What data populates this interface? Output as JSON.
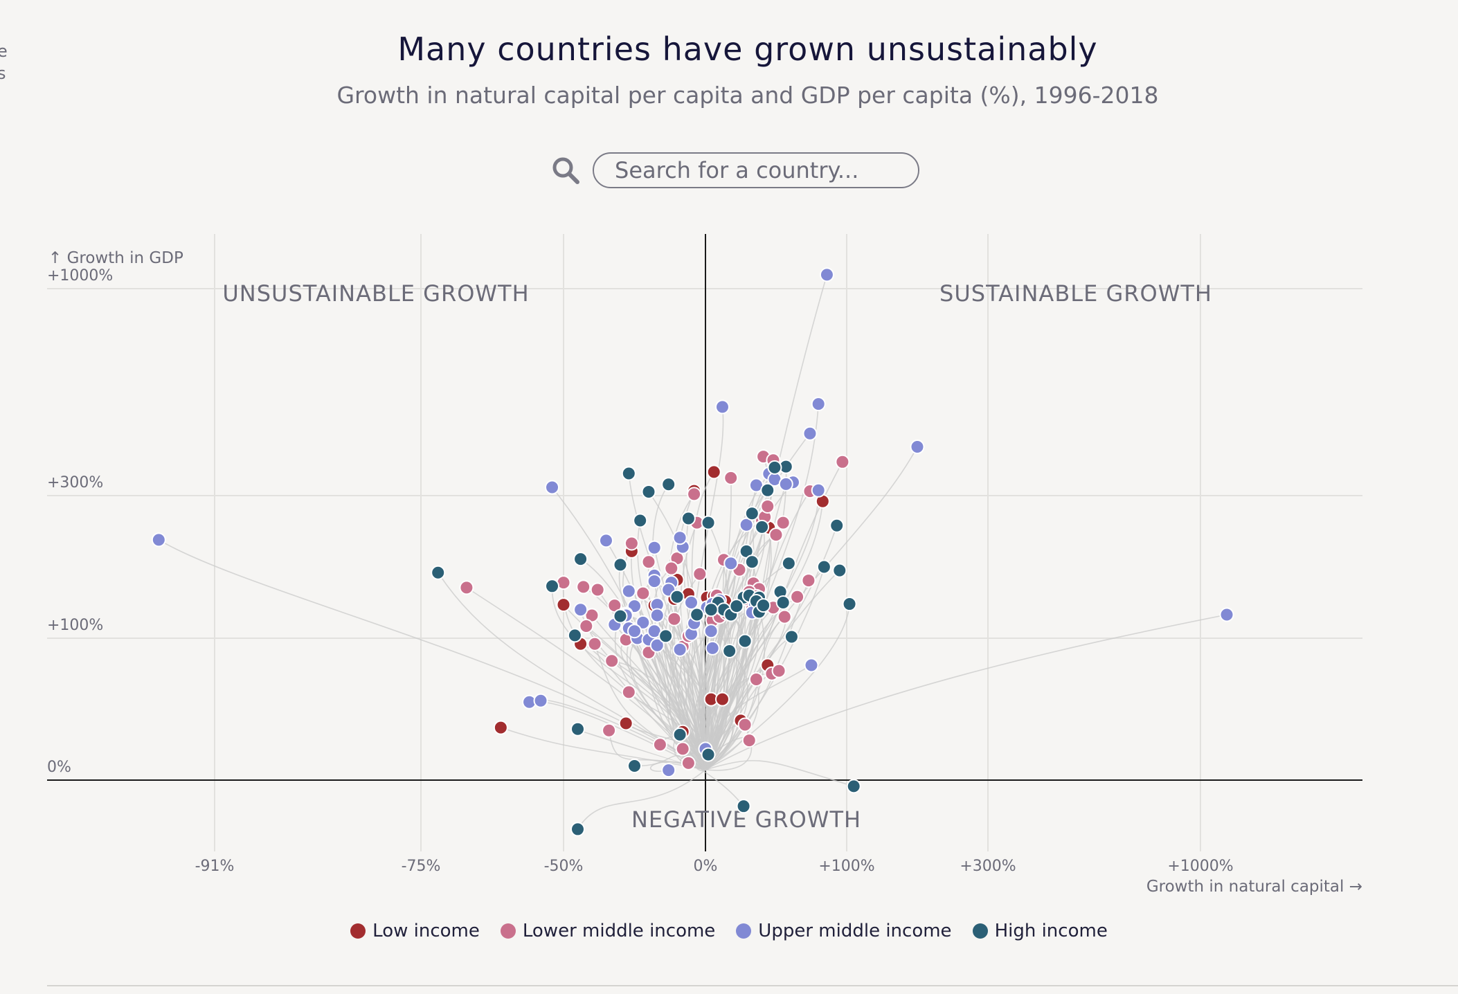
{
  "page": {
    "edge_text": [
      "e",
      "s"
    ],
    "title": "Many countries have grown unsustainably",
    "subtitle": "Growth in natural capital per capita and GDP per capita (%), 1996-2018"
  },
  "search": {
    "placeholder": "Search for a country...",
    "icon": "search-icon"
  },
  "chart_data": {
    "type": "scatter",
    "title": "Many countries have grown unsustainably",
    "subtitle": "Growth in natural capital per capita and GDP per capita (%), 1996-2018",
    "xlabel": "Growth in natural capital →",
    "ylabel": "↑ Growth in GDP",
    "x_ticks": [
      {
        "value": -91,
        "label": "-91%"
      },
      {
        "value": -75,
        "label": "-75%"
      },
      {
        "value": -50,
        "label": "-50%"
      },
      {
        "value": 0,
        "label": "0%"
      },
      {
        "value": 100,
        "label": "+100%"
      },
      {
        "value": 300,
        "label": "+300%"
      },
      {
        "value": 1000,
        "label": "+1000%"
      }
    ],
    "y_ticks": [
      {
        "value": 0,
        "label": "0%"
      },
      {
        "value": 100,
        "label": "+100%"
      },
      {
        "value": 300,
        "label": "+300%"
      },
      {
        "value": 1000,
        "label": "+1000%"
      }
    ],
    "quadrant_labels": {
      "top_left": "UNSUSTAINABLE GROWTH",
      "top_right": "SUSTAINABLE GROWTH",
      "bottom": "NEGATIVE GROWTH"
    },
    "grid": true,
    "legend_position": "bottom",
    "colors": {
      "Low income": "#a22d2f",
      "Lower middle income": "#c9708c",
      "Upper middle income": "#8189d4",
      "High income": "#2b5f75",
      "trail": "#c9c9c9",
      "grid": "#e2e1de",
      "axis": "#1a1a1a"
    },
    "series": [
      {
        "name": "Low income",
        "points": [
          [
            6,
            380
          ],
          [
            -4,
            316
          ],
          [
            -26,
            222
          ],
          [
            -18,
            146
          ],
          [
            -50,
            147
          ],
          [
            -6,
            162
          ],
          [
            1,
            157
          ],
          [
            6,
            159
          ],
          [
            14,
            152
          ],
          [
            -11,
            155
          ],
          [
            -10,
            182
          ],
          [
            10,
            145
          ],
          [
            45,
            255
          ],
          [
            -44,
            96
          ],
          [
            -61,
            37
          ],
          [
            -28,
            40
          ],
          [
            -8,
            34
          ],
          [
            4,
            57
          ],
          [
            12,
            57
          ],
          [
            25,
            42
          ],
          [
            44,
            81
          ],
          [
            83,
            292
          ]
        ]
      },
      {
        "name": "Lower middle income",
        "points": [
          [
            -4,
            305
          ],
          [
            -3,
            262
          ],
          [
            18,
            360
          ],
          [
            41,
            432
          ],
          [
            48,
            420
          ],
          [
            97,
            414
          ],
          [
            40,
            265
          ],
          [
            42,
            270
          ],
          [
            44,
            285
          ],
          [
            55,
            262
          ],
          [
            50,
            245
          ],
          [
            74,
            315
          ],
          [
            -26,
            233
          ],
          [
            -20,
            207
          ],
          [
            -10,
            212
          ],
          [
            -12,
            198
          ],
          [
            -2,
            190
          ],
          [
            13,
            210
          ],
          [
            -50,
            178
          ],
          [
            -67,
            171
          ],
          [
            -43,
            172
          ],
          [
            -38,
            168
          ],
          [
            -32,
            146
          ],
          [
            -22,
            163
          ],
          [
            -40,
            132
          ],
          [
            -42,
            117
          ],
          [
            -39,
            96
          ],
          [
            -33,
            84
          ],
          [
            -25,
            112
          ],
          [
            -28,
            99
          ],
          [
            -8,
            94
          ],
          [
            -11,
            127
          ],
          [
            -6,
            103
          ],
          [
            -20,
            90
          ],
          [
            5,
            125
          ],
          [
            10,
            130
          ],
          [
            15,
            135
          ],
          [
            6,
            145
          ],
          [
            8,
            160
          ],
          [
            24,
            196
          ],
          [
            34,
            177
          ],
          [
            38,
            169
          ],
          [
            33,
            141
          ],
          [
            28,
            155
          ],
          [
            31,
            165
          ],
          [
            36,
            159
          ],
          [
            48,
            143
          ],
          [
            56,
            130
          ],
          [
            65,
            158
          ],
          [
            73,
            181
          ],
          [
            47,
            75
          ],
          [
            36,
            71
          ],
          [
            52,
            77
          ],
          [
            -27,
            62
          ],
          [
            -34,
            35
          ],
          [
            -16,
            25
          ],
          [
            28,
            39
          ],
          [
            31,
            28
          ],
          [
            -6,
            12
          ],
          [
            -8,
            22
          ]
        ]
      },
      {
        "name": "Upper middle income",
        "points": [
          [
            -94,
            238
          ],
          [
            -52,
            328
          ],
          [
            -35,
            237
          ],
          [
            -18,
            227
          ],
          [
            12,
            600
          ],
          [
            86,
            1060
          ],
          [
            80,
            610
          ],
          [
            74,
            510
          ],
          [
            200,
            465
          ],
          [
            45,
            374
          ],
          [
            49,
            355
          ],
          [
            62,
            345
          ],
          [
            36,
            335
          ],
          [
            57,
            339
          ],
          [
            80,
            318
          ],
          [
            -8,
            228
          ],
          [
            -9,
            241
          ],
          [
            29,
            259
          ],
          [
            18,
            205
          ],
          [
            -18,
            188
          ],
          [
            -12,
            178
          ],
          [
            -13,
            168
          ],
          [
            -18,
            180
          ],
          [
            -27,
            166
          ],
          [
            -25,
            145
          ],
          [
            -44,
            140
          ],
          [
            -27,
            114
          ],
          [
            -24,
            100
          ],
          [
            -22,
            122
          ],
          [
            -5,
            106
          ],
          [
            -4,
            121
          ],
          [
            4,
            110
          ],
          [
            1,
            143
          ],
          [
            10,
            153
          ],
          [
            5,
            148
          ],
          [
            12,
            141
          ],
          [
            -25,
            110
          ],
          [
            -20,
            99
          ],
          [
            -17,
            95
          ],
          [
            -9,
            92
          ],
          [
            5,
            93
          ],
          [
            35,
            147
          ],
          [
            33,
            136
          ],
          [
            -5,
            150
          ],
          [
            -17,
            147
          ],
          [
            -28,
            134
          ],
          [
            -17,
            132
          ],
          [
            -18,
            110
          ],
          [
            -32,
            119
          ],
          [
            -28,
            132
          ],
          [
            -56,
            55
          ],
          [
            -54,
            56
          ],
          [
            75,
            81
          ],
          [
            1130,
            133
          ],
          [
            -13,
            7
          ],
          [
            0,
            22
          ]
        ]
      },
      {
        "name": "High income",
        "points": [
          [
            -27,
            375
          ],
          [
            -20,
            313
          ],
          [
            -13,
            338
          ],
          [
            -23,
            265
          ],
          [
            -6,
            268
          ],
          [
            2,
            262
          ],
          [
            57,
            398
          ],
          [
            49,
            395
          ],
          [
            44,
            318
          ],
          [
            33,
            275
          ],
          [
            40,
            256
          ],
          [
            29,
            222
          ],
          [
            -44,
            211
          ],
          [
            -52,
            173
          ],
          [
            -30,
            203
          ],
          [
            -72,
            192
          ],
          [
            33,
            207
          ],
          [
            59,
            205
          ],
          [
            95,
            195
          ],
          [
            -10,
            158
          ],
          [
            9,
            150
          ],
          [
            13,
            140
          ],
          [
            18,
            133
          ],
          [
            27,
            157
          ],
          [
            31,
            160
          ],
          [
            38,
            157
          ],
          [
            36,
            152
          ],
          [
            22,
            145
          ],
          [
            38,
            137
          ],
          [
            41,
            146
          ],
          [
            53,
            165
          ],
          [
            84,
            200
          ],
          [
            104,
            148
          ],
          [
            55,
            150
          ],
          [
            28,
            98
          ],
          [
            17,
            91
          ],
          [
            61,
            102
          ],
          [
            93,
            258
          ],
          [
            -30,
            131
          ],
          [
            -46,
            104
          ],
          [
            -14,
            103
          ],
          [
            -45,
            36
          ],
          [
            -9,
            32
          ],
          [
            -25,
            10
          ],
          [
            2,
            18
          ],
          [
            27,
            -17
          ],
          [
            110,
            -4
          ],
          [
            -45,
            -32
          ],
          [
            -3,
            133
          ],
          [
            4,
            140
          ]
        ]
      }
    ]
  },
  "legend": [
    {
      "label": "Low income",
      "color": "#a22d2f"
    },
    {
      "label": "Lower middle income",
      "color": "#c9708c"
    },
    {
      "label": "Upper middle income",
      "color": "#8189d4"
    },
    {
      "label": "High income",
      "color": "#2b5f75"
    }
  ]
}
